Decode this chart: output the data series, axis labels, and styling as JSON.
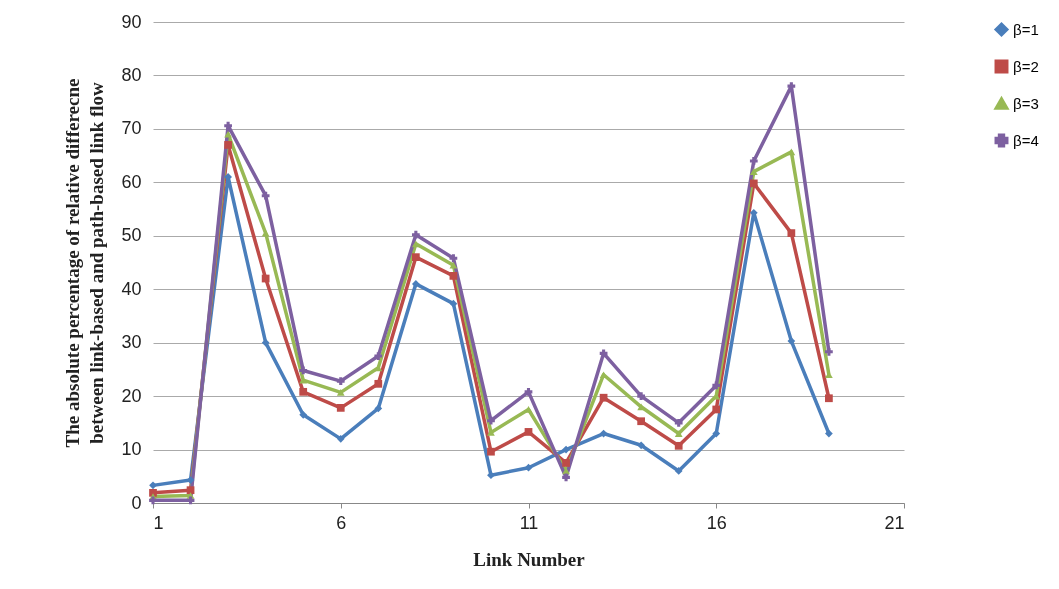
{
  "chart_data": {
    "type": "line",
    "xlabel": "Link Number",
    "ylabel": "The absolute percentage of relative differecne between link-based and path-based link flow",
    "x": [
      1,
      2,
      3,
      4,
      5,
      6,
      7,
      8,
      9,
      10,
      11,
      12,
      13,
      14,
      15,
      16,
      17,
      18,
      19
    ],
    "xlim": [
      1,
      21
    ],
    "xticks": [
      1,
      6,
      11,
      16,
      21
    ],
    "ylim": [
      0,
      90
    ],
    "yticks": [
      0,
      10,
      20,
      30,
      40,
      50,
      60,
      70,
      80,
      90
    ],
    "grid": "y",
    "legend": "right",
    "line_style": "solid",
    "series": [
      {
        "name": "β=1",
        "color": "#4a7ebb",
        "marker": "diamond",
        "values": [
          3.3,
          4.3,
          61,
          30,
          16.5,
          12,
          17.7,
          41,
          37.3,
          5.2,
          6.6,
          10,
          13,
          10.8,
          6,
          13,
          54.3,
          30.3,
          13
        ]
      },
      {
        "name": "β=2",
        "color": "#be4b48",
        "marker": "square",
        "values": [
          1.9,
          2.4,
          67,
          42,
          20.8,
          17.8,
          22.3,
          46,
          42.5,
          9.6,
          13.3,
          7.5,
          19.7,
          15.3,
          10.7,
          17.5,
          59.8,
          50.5,
          19.6
        ]
      },
      {
        "name": "β=3",
        "color": "#98b954",
        "marker": "triangle",
        "values": [
          1.2,
          1.4,
          69,
          50.5,
          23,
          20.7,
          25.3,
          48.5,
          44.5,
          13.2,
          17.5,
          6,
          24,
          18,
          13,
          20,
          62,
          65.7,
          24
        ]
      },
      {
        "name": "β=4",
        "color": "#7d60a0",
        "marker": "cross",
        "values": [
          0.5,
          0.5,
          70.6,
          57.5,
          24.8,
          22.8,
          27.5,
          50.2,
          45.8,
          15.4,
          20.8,
          4.8,
          28,
          20,
          15,
          22,
          64,
          78,
          28.3
        ]
      }
    ]
  }
}
